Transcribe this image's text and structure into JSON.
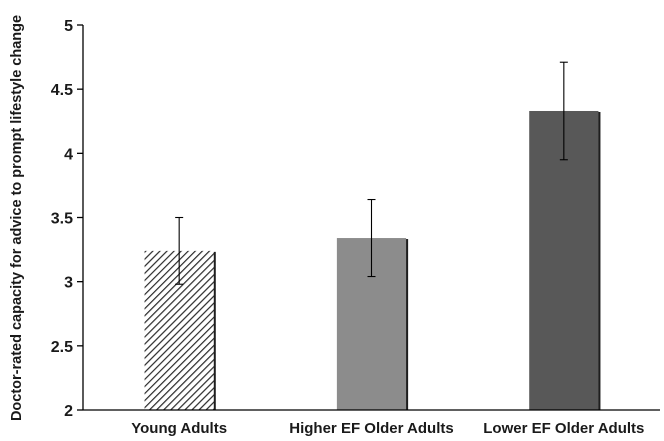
{
  "chart_data": {
    "type": "bar",
    "title": "",
    "xlabel": "",
    "ylabel": "Doctor-rated capacity for advice to prompt lifestyle change",
    "ylim": [
      2,
      5
    ],
    "yticks": [
      "2",
      "2.5",
      "3",
      "3.5",
      "4",
      "4.5",
      "5"
    ],
    "categories": [
      "Young Adults",
      "Higher EF Older Adults",
      "Lower EF Older Adults"
    ],
    "values": [
      3.24,
      3.34,
      4.33
    ],
    "error_bars": [
      0.26,
      0.3,
      0.38
    ],
    "bar_styles": [
      {
        "pattern": "diagonal-hatch",
        "color": "#2a2a2a"
      },
      {
        "pattern": "solid",
        "color": "#8c8c8c"
      },
      {
        "pattern": "solid",
        "color": "#585858"
      }
    ],
    "grid": false,
    "legend": "none",
    "axis_color": "#000000"
  }
}
